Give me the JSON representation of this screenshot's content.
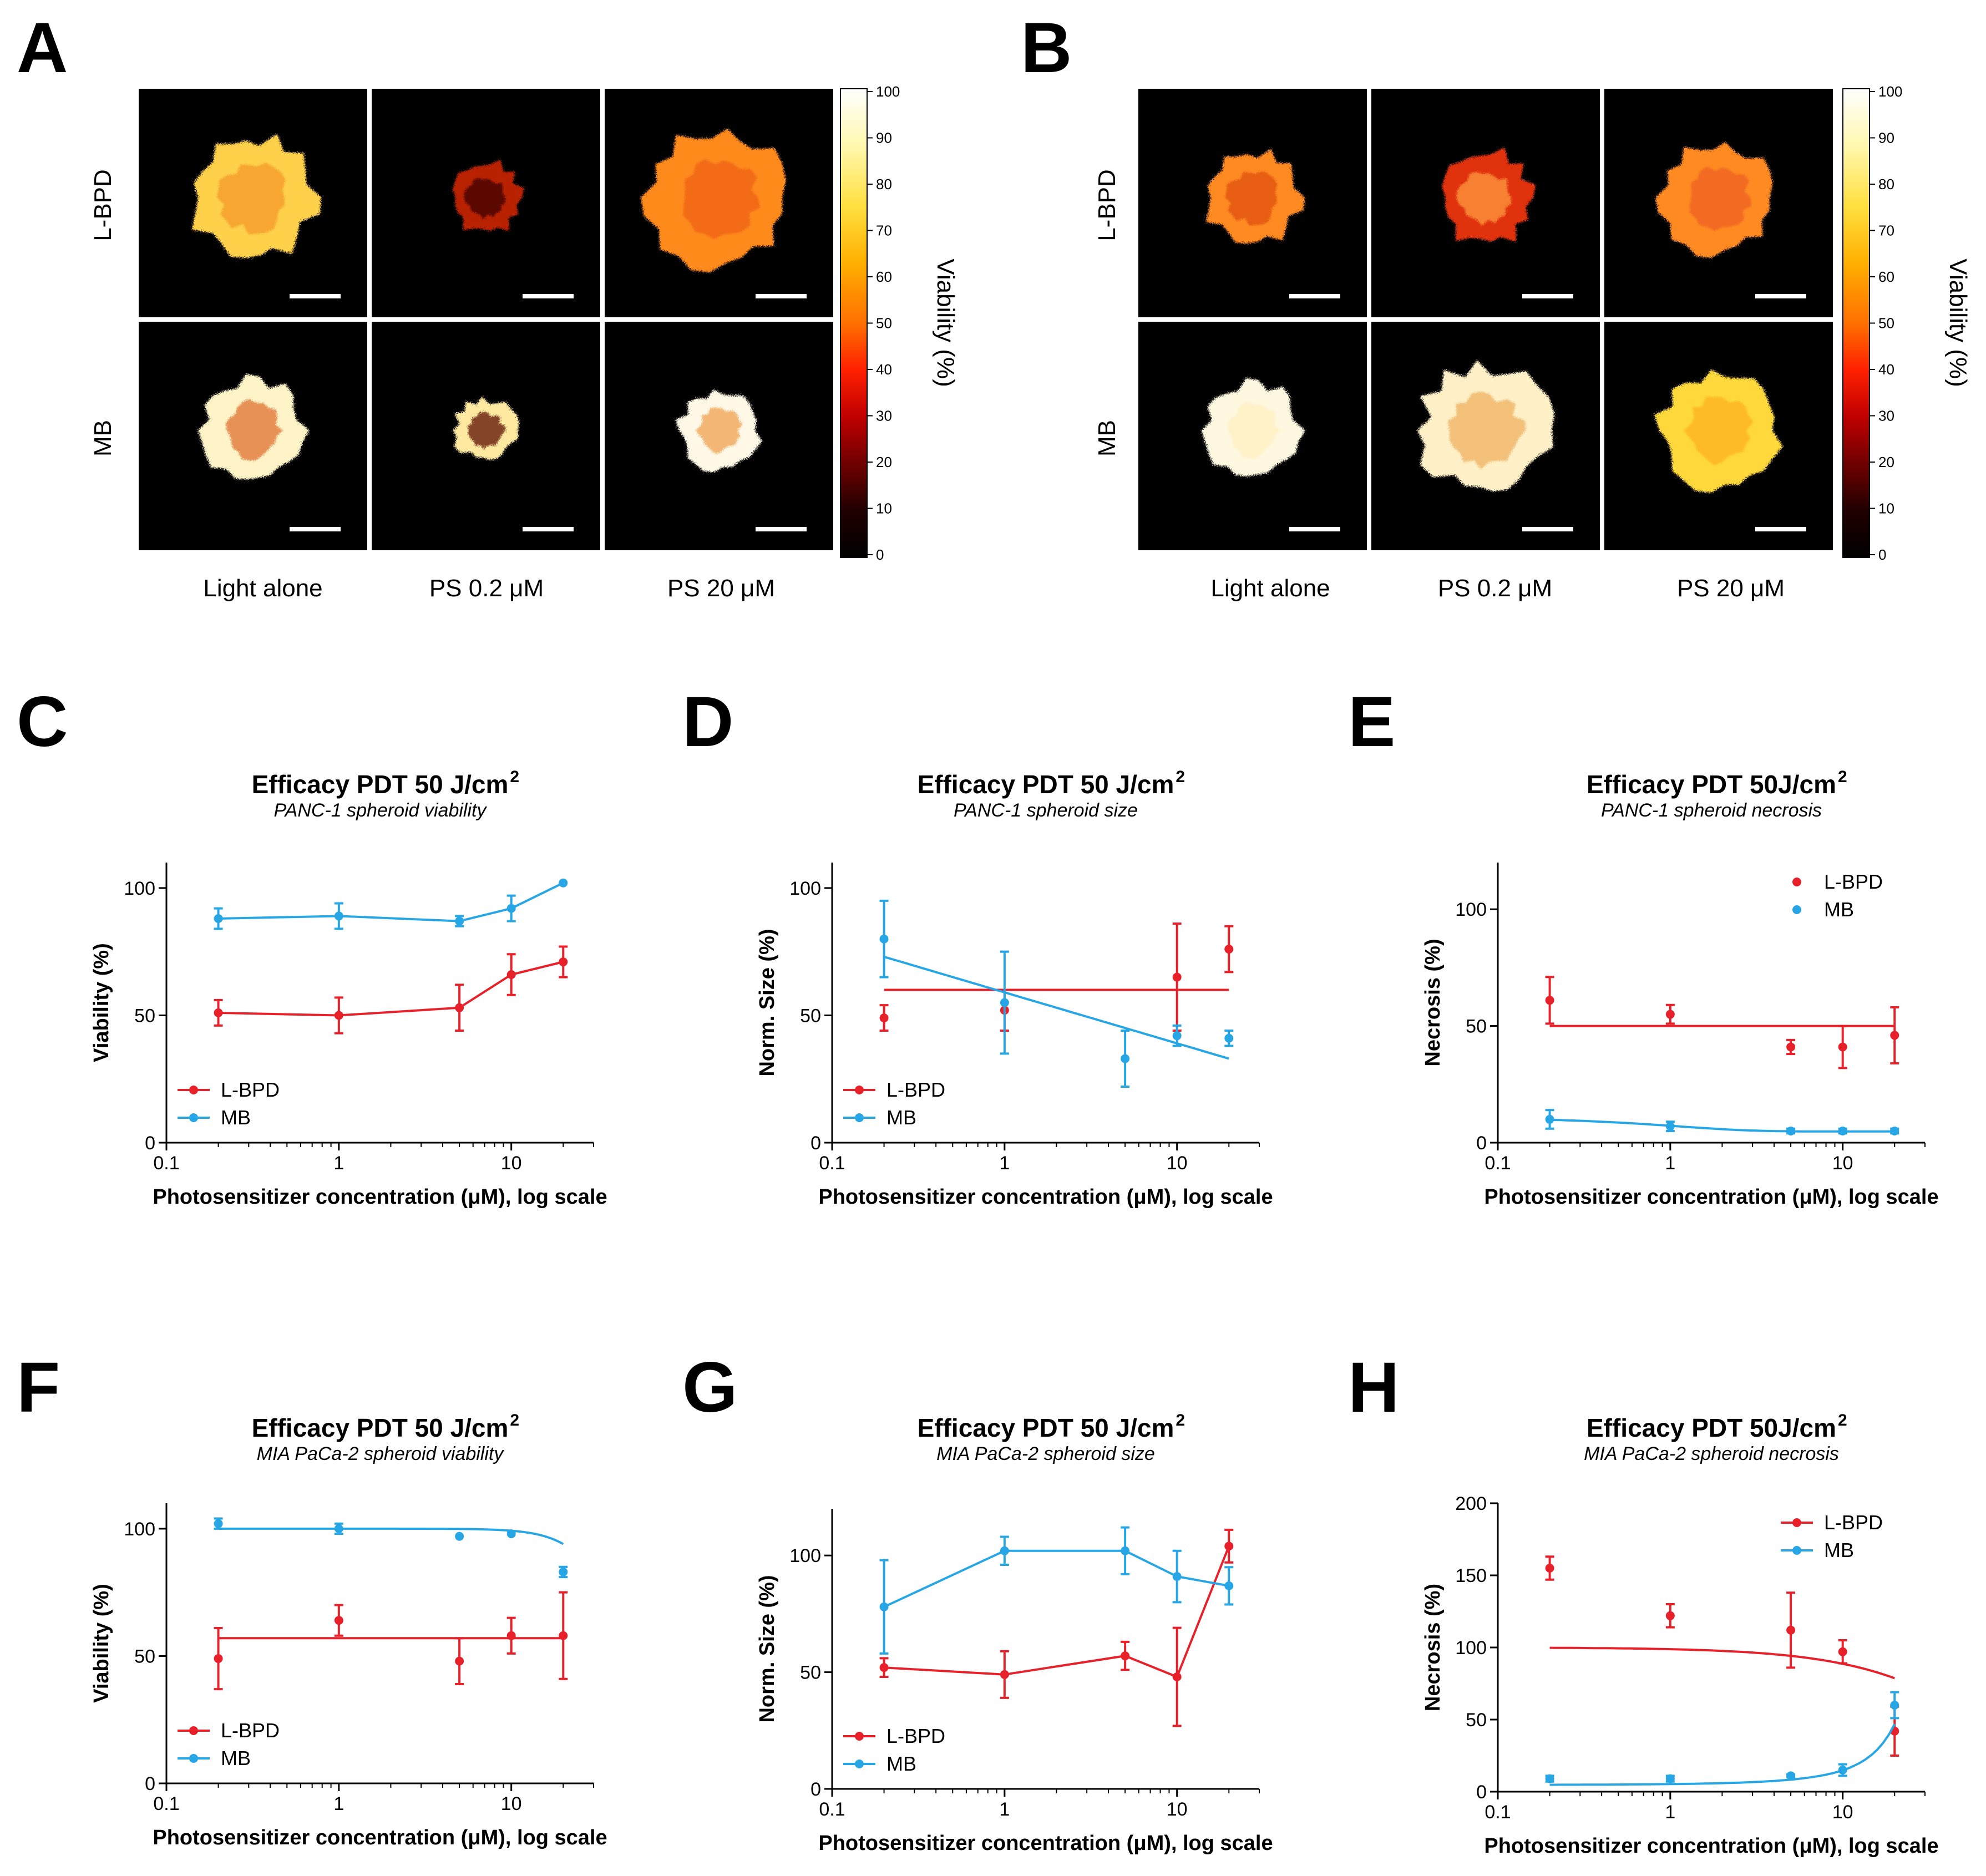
{
  "panels": {
    "A": "A",
    "B": "B",
    "C": "C",
    "D": "D",
    "E": "E",
    "F": "F",
    "G": "G",
    "H": "H"
  },
  "images": {
    "rows": [
      "L-BPD",
      "MB"
    ],
    "columns": [
      "Light alone",
      "PS 0.2 μM",
      "PS 20 μM"
    ],
    "colorbar": {
      "label": "Viability (%)",
      "ticks": [
        "100",
        "90",
        "80",
        "70",
        "60",
        "50",
        "40",
        "30",
        "20",
        "10",
        "0"
      ],
      "stops": [
        "#ffffff",
        "#fff8b0",
        "#ffe040",
        "#ffb000",
        "#ff7000",
        "#ff2000",
        "#c00000",
        "#700000",
        "#200000",
        "#000000"
      ]
    },
    "panelA": {
      "cells": [
        [
          {
            "size": 0.55,
            "base": "#ffd04a",
            "core": "#f59a2a"
          },
          {
            "size": 0.32,
            "base": "#b82000",
            "core": "#3a0000"
          },
          {
            "size": 0.62,
            "base": "#ff8a1a",
            "core": "#f06018"
          }
        ],
        [
          {
            "size": 0.45,
            "base": "#fff4c8",
            "core": "#e07030"
          },
          {
            "size": 0.28,
            "base": "#ffe9a0",
            "core": "#5a0a00"
          },
          {
            "size": 0.35,
            "base": "#fff8e6",
            "core": "#f0a050"
          }
        ]
      ]
    },
    "panelB": {
      "cells": [
        [
          {
            "size": 0.42,
            "base": "#ff8a20",
            "core": "#e05010"
          },
          {
            "size": 0.42,
            "base": "#e03010",
            "core": "#ff9a40"
          },
          {
            "size": 0.5,
            "base": "#ff8a20",
            "core": "#f06020"
          }
        ],
        [
          {
            "size": 0.42,
            "base": "#fff8e0",
            "core": "#fff0c0"
          },
          {
            "size": 0.58,
            "base": "#fff0c8",
            "core": "#f0b060"
          },
          {
            "size": 0.52,
            "base": "#ffd83a",
            "core": "#ffb020"
          }
        ]
      ]
    }
  },
  "colors": {
    "lbpd": "#e8202a",
    "mb": "#27a6e6"
  },
  "chart_data": [
    {
      "panel": "C",
      "type": "line",
      "title": "Efficacy PDT 50 J/cm",
      "title_sup": "2",
      "subtitle": "PANC-1 spheroid viability",
      "xlabel": "Photosensitizer concentration (μM), log scale",
      "ylabel": "Viability (%)",
      "xscale": "log",
      "xlim": [
        0.1,
        30
      ],
      "ylim": [
        0,
        110
      ],
      "xticks": [
        0.1,
        1,
        10
      ],
      "xtick_labels": [
        "0.1",
        "1",
        "10"
      ],
      "yticks": [
        0,
        50,
        100
      ],
      "ytick_labels": [
        "0",
        "50",
        "100"
      ],
      "legend": {
        "position": "bottom-left",
        "markers": "line"
      },
      "series": [
        {
          "name": "L-BPD",
          "color": "#e8202a",
          "x": [
            0.2,
            1,
            5,
            10,
            20
          ],
          "y": [
            51,
            50,
            53,
            66,
            71
          ],
          "err": [
            5,
            7,
            9,
            8,
            6
          ],
          "fit": {
            "kind": "connect"
          }
        },
        {
          "name": "MB",
          "color": "#27a6e6",
          "x": [
            0.2,
            1,
            5,
            10,
            20
          ],
          "y": [
            88,
            89,
            87,
            92,
            102
          ],
          "err": [
            4,
            5,
            2,
            5,
            0
          ],
          "fit": {
            "kind": "connect"
          }
        }
      ]
    },
    {
      "panel": "D",
      "type": "scatter",
      "title": "Efficacy PDT 50 J/cm",
      "title_sup": "2",
      "subtitle": "PANC-1 spheroid size",
      "xlabel": "Photosensitizer concentration (μM), log scale",
      "ylabel": "Norm. Size (%)",
      "xscale": "log",
      "xlim": [
        0.1,
        30
      ],
      "ylim": [
        0,
        110
      ],
      "xticks": [
        0.1,
        1,
        10
      ],
      "xtick_labels": [
        "0.1",
        "1",
        "10"
      ],
      "yticks": [
        0,
        50,
        100
      ],
      "ytick_labels": [
        "0",
        "50",
        "100"
      ],
      "legend": {
        "position": "bottom-left",
        "markers": "line"
      },
      "series": [
        {
          "name": "L-BPD",
          "color": "#e8202a",
          "x": [
            0.2,
            1,
            10,
            20
          ],
          "y": [
            49,
            52,
            65,
            76
          ],
          "err": [
            5,
            8,
            21,
            9
          ],
          "fit": {
            "kind": "flat",
            "from": 0.2,
            "to": 20,
            "y0": 60
          }
        },
        {
          "name": "MB",
          "color": "#27a6e6",
          "x": [
            0.2,
            1,
            5,
            10,
            20
          ],
          "y": [
            80,
            55,
            33,
            42,
            41
          ],
          "err": [
            15,
            20,
            11,
            4,
            3
          ],
          "fit": {
            "kind": "linear",
            "from": 0.2,
            "to": 20,
            "y0": 73,
            "y1": 33
          }
        }
      ]
    },
    {
      "panel": "E",
      "type": "scatter",
      "title": "Efficacy PDT 50J/cm",
      "title_sup": "2",
      "subtitle": "PANC-1 spheroid necrosis",
      "xlabel": "Photosensitizer concentration (μM), log scale",
      "ylabel": "Necrosis (%)",
      "xscale": "log",
      "xlim": [
        0.1,
        30
      ],
      "ylim": [
        0,
        120
      ],
      "xticks": [
        0.1,
        1,
        10
      ],
      "xtick_labels": [
        "0.1",
        "1",
        "10"
      ],
      "yticks": [
        0,
        50,
        100
      ],
      "ytick_labels": [
        "0",
        "50",
        "100"
      ],
      "legend": {
        "position": "top-right",
        "markers": "dot"
      },
      "series": [
        {
          "name": "L-BPD",
          "color": "#e8202a",
          "x": [
            0.2,
            1,
            5,
            10,
            20
          ],
          "y": [
            61,
            55,
            41,
            41,
            46
          ],
          "err": [
            10,
            4,
            3,
            9,
            12
          ],
          "fit": {
            "kind": "flat",
            "from": 0.2,
            "to": 20,
            "y0": 50
          }
        },
        {
          "name": "MB",
          "color": "#27a6e6",
          "x": [
            0.2,
            1,
            5,
            10,
            20
          ],
          "y": [
            10,
            7,
            5,
            5,
            5
          ],
          "err": [
            4,
            2,
            1,
            1,
            1
          ],
          "fit": {
            "kind": "exp",
            "from": 0.2,
            "to": 20,
            "a": 4.8,
            "b": 6,
            "k": 0.9
          }
        }
      ]
    },
    {
      "panel": "F",
      "type": "scatter",
      "title": "Efficacy PDT 50 J/cm",
      "title_sup": "2",
      "subtitle": "MIA PaCa-2 spheroid viability",
      "xlabel": "Photosensitizer concentration (μM), log scale",
      "ylabel": "Viability (%)",
      "xscale": "log",
      "xlim": [
        0.1,
        30
      ],
      "ylim": [
        0,
        110
      ],
      "xticks": [
        0.1,
        1,
        10
      ],
      "xtick_labels": [
        "0.1",
        "1",
        "10"
      ],
      "yticks": [
        0,
        50,
        100
      ],
      "ytick_labels": [
        "0",
        "50",
        "100"
      ],
      "legend": {
        "position": "bottom-left",
        "markers": "line"
      },
      "series": [
        {
          "name": "L-BPD",
          "color": "#e8202a",
          "x": [
            0.2,
            1,
            5,
            10,
            20
          ],
          "y": [
            49,
            64,
            48,
            58,
            58
          ],
          "err": [
            12,
            6,
            9,
            7,
            17
          ],
          "fit": {
            "kind": "flat",
            "from": 0.2,
            "to": 20,
            "y0": 57
          }
        },
        {
          "name": "MB",
          "color": "#27a6e6",
          "x": [
            0.2,
            1,
            5,
            10,
            20
          ],
          "y": [
            102,
            100,
            97,
            98,
            83
          ],
          "err": [
            2,
            2,
            0,
            0,
            2
          ],
          "fit": {
            "kind": "sigmoid",
            "from": 0.2,
            "to": 20,
            "top": 100,
            "ic50": 50,
            "h": 3
          }
        }
      ]
    },
    {
      "panel": "G",
      "type": "line",
      "title": "Efficacy PDT 50 J/cm",
      "title_sup": "2",
      "subtitle": "MIA PaCa-2 spheroid size",
      "xlabel": "Photosensitizer concentration (μM), log scale",
      "ylabel": "Norm. Size (%)",
      "xscale": "log",
      "xlim": [
        0.1,
        30
      ],
      "ylim": [
        0,
        120
      ],
      "xticks": [
        0.1,
        1,
        10
      ],
      "xtick_labels": [
        "0.1",
        "1",
        "10"
      ],
      "yticks": [
        0,
        50,
        100
      ],
      "ytick_labels": [
        "0",
        "50",
        "100"
      ],
      "legend": {
        "position": "bottom-left",
        "markers": "line"
      },
      "series": [
        {
          "name": "L-BPD",
          "color": "#e8202a",
          "x": [
            0.2,
            1,
            5,
            10,
            20
          ],
          "y": [
            52,
            49,
            57,
            48,
            104
          ],
          "err": [
            4,
            10,
            6,
            21,
            7
          ],
          "fit": {
            "kind": "connect"
          }
        },
        {
          "name": "MB",
          "color": "#27a6e6",
          "x": [
            0.2,
            1,
            5,
            10,
            20
          ],
          "y": [
            78,
            102,
            102,
            91,
            87
          ],
          "err": [
            20,
            6,
            10,
            11,
            8
          ],
          "fit": {
            "kind": "connect"
          }
        }
      ]
    },
    {
      "panel": "H",
      "type": "scatter",
      "title": "Efficacy PDT 50J/cm",
      "title_sup": "2",
      "subtitle": "MIA PaCa-2 spheroid necrosis",
      "xlabel": "Photosensitizer concentration (μM), log scale",
      "ylabel": "Necrosis (%)",
      "xscale": "log",
      "xlim": [
        0.1,
        30
      ],
      "ylim": [
        0,
        200
      ],
      "xticks": [
        0.1,
        1,
        10
      ],
      "xtick_labels": [
        "0.1",
        "1",
        "10"
      ],
      "yticks": [
        0,
        50,
        100,
        150,
        200
      ],
      "ytick_labels": [
        "0",
        "50",
        "100",
        "150",
        "200"
      ],
      "legend": {
        "position": "top-right",
        "markers": "line"
      },
      "series": [
        {
          "name": "L-BPD",
          "color": "#e8202a",
          "x": [
            0.2,
            1,
            5,
            10,
            20
          ],
          "y": [
            155,
            122,
            112,
            97,
            42
          ],
          "err": [
            8,
            8,
            26,
            8,
            17
          ],
          "fit": {
            "kind": "decay",
            "from": 0.2,
            "to": 20,
            "top": 100,
            "k": 0.012
          }
        },
        {
          "name": "MB",
          "color": "#27a6e6",
          "x": [
            0.2,
            1,
            5,
            10,
            20
          ],
          "y": [
            9,
            9,
            11,
            15,
            60
          ],
          "err": [
            2,
            2,
            1,
            4,
            9
          ],
          "fit": {
            "kind": "grow",
            "from": 0.2,
            "to": 20,
            "a": 4.7,
            "k": 0.115
          }
        }
      ]
    }
  ]
}
